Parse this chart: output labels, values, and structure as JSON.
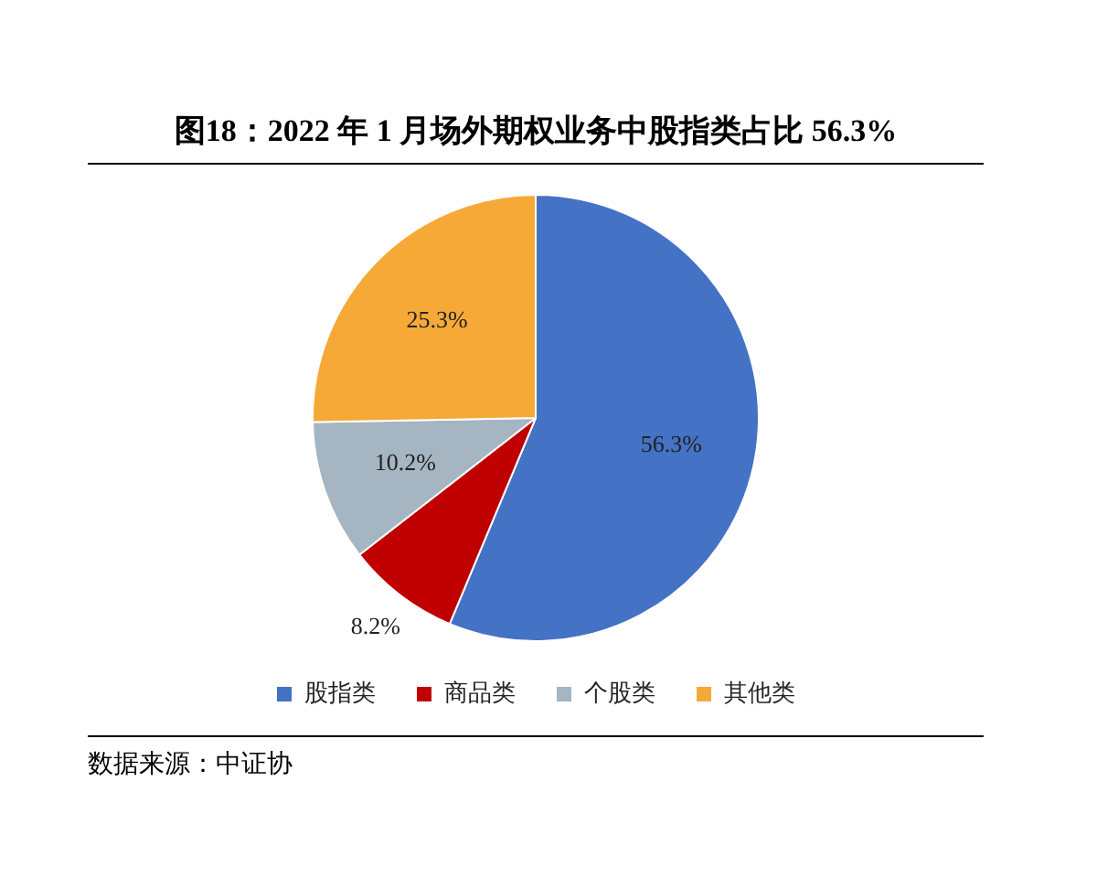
{
  "chart_data": {
    "type": "pie",
    "title": "图18：2022 年 1 月场外期权业务中股指类占比 56.3%",
    "categories": [
      "股指类",
      "商品类",
      "个股类",
      "其他类"
    ],
    "values": [
      56.3,
      8.2,
      10.2,
      25.3
    ],
    "colors": [
      "#4472c4",
      "#c00000",
      "#a5b5c1",
      "#f7a937"
    ],
    "value_labels": [
      "56.3%",
      "8.2%",
      "10.2%",
      "25.3%"
    ],
    "legend": "bottom",
    "annotations": [
      "数据来源：中证协"
    ]
  }
}
